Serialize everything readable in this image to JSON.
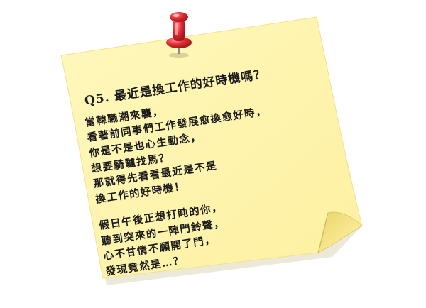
{
  "note": {
    "title": "Q5.  最近是換工作的好時機嗎？",
    "paragraph1": [
      "當韓職潮來襲，",
      "看著前同事們工作發展愈換愈好時，",
      "你是不是也心生動念，",
      "想要騎驢找馬？",
      "那就得先看看最近是不是",
      "換工作的好時機！"
    ],
    "paragraph2": [
      "假日午後正想打盹的你，",
      "聽到突來的一陣門鈴聲，",
      "心不甘情不願開了門，",
      "發現竟然是…？"
    ]
  },
  "colors": {
    "paper": "#fff5a8",
    "paper_shadow": "#e8dc86",
    "curl": "#f3e27a",
    "pin_red": "#e32f38",
    "ink": "#1a1a1a"
  },
  "icons": {
    "pin": "pushpin-icon"
  }
}
